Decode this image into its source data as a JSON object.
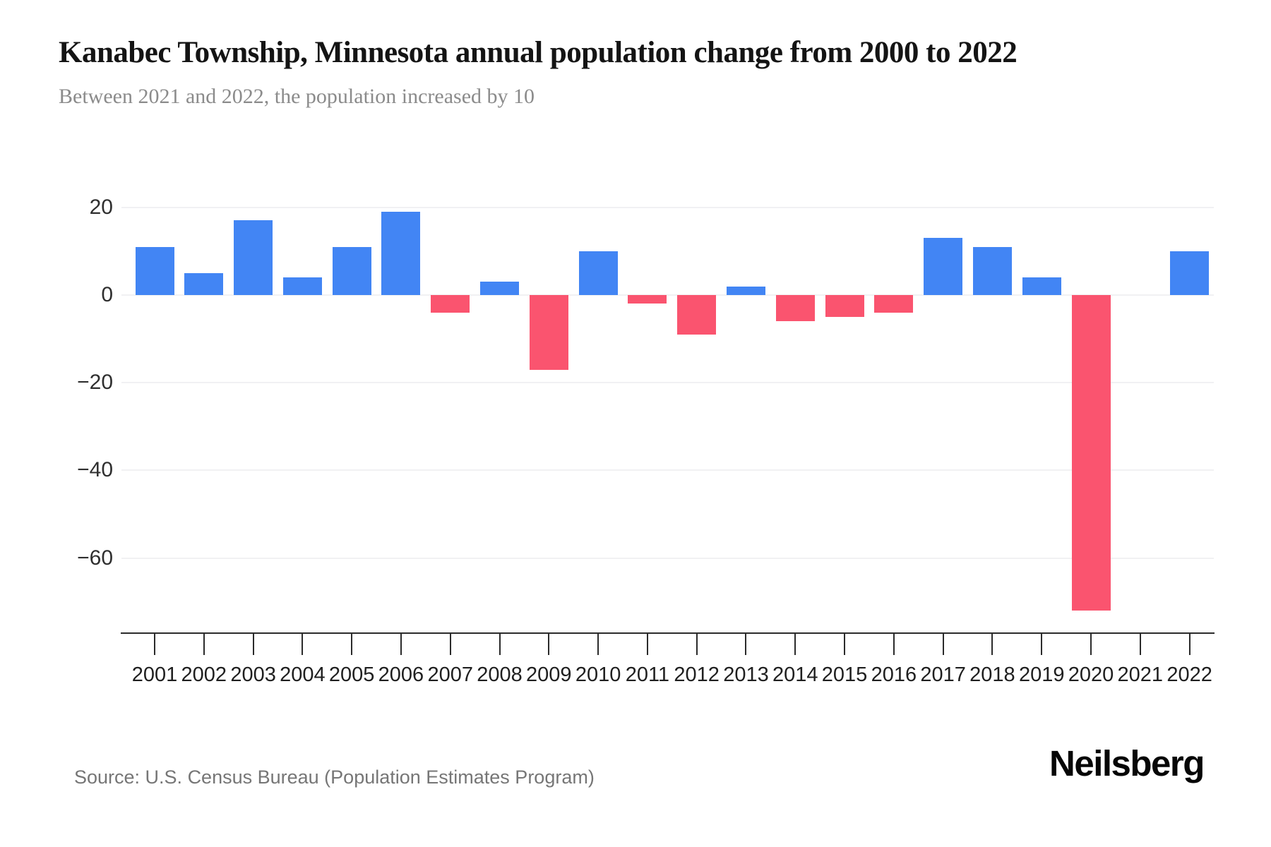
{
  "header": {
    "title": "Kanabec Township, Minnesota annual population change from 2000 to 2022",
    "subtitle": "Between 2021 and 2022, the population increased by 10"
  },
  "chart_data": {
    "type": "bar",
    "title": "Kanabec Township, Minnesota annual population change from 2000 to 2022",
    "subtitle": "Between 2021 and 2022, the population increased by 10",
    "categories": [
      "2001",
      "2002",
      "2003",
      "2004",
      "2005",
      "2006",
      "2007",
      "2008",
      "2009",
      "2010",
      "2011",
      "2012",
      "2013",
      "2014",
      "2015",
      "2016",
      "2017",
      "2018",
      "2019",
      "2020",
      "2021",
      "2022"
    ],
    "values": [
      11,
      5,
      17,
      4,
      11,
      19,
      -4,
      3,
      -17,
      10,
      -2,
      -9,
      2,
      -6,
      -5,
      -4,
      13,
      11,
      4,
      -72,
      0,
      10
    ],
    "xlabel": "",
    "ylabel": "",
    "ylim": [
      -76,
      25
    ],
    "yticks": [
      20,
      0,
      -20,
      -40,
      -60
    ],
    "ytick_labels": [
      "20",
      "0",
      "−20",
      "−40",
      "−60"
    ],
    "grid": true,
    "legend": false,
    "positive_color": "#4285F4",
    "negative_color": "#FA546F",
    "gridline_color": "#f1f1f3",
    "axis_color": "#2b2b2b"
  },
  "footer": {
    "source": "Source: U.S. Census Bureau (Population Estimates Program)",
    "logo": "Neilsberg"
  }
}
